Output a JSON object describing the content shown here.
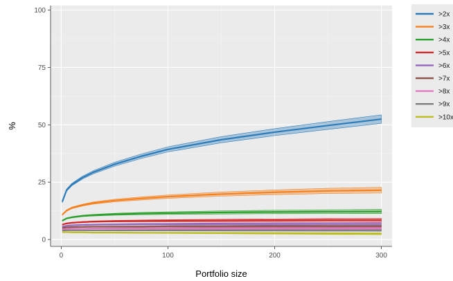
{
  "chart_data": {
    "type": "line",
    "title": "",
    "xlabel": "Portfolio size",
    "ylabel": "%",
    "xlim": [
      -10,
      310
    ],
    "ylim": [
      -3,
      102
    ],
    "xticks": [
      0,
      100,
      200,
      300
    ],
    "yticks": [
      0,
      25,
      50,
      75,
      100
    ],
    "grid": true,
    "legend_position": "right",
    "x": [
      1,
      5,
      10,
      20,
      30,
      50,
      75,
      100,
      150,
      200,
      250,
      300
    ],
    "series": [
      {
        "name": ">2x",
        "color": "#2b7bba",
        "values": [
          16.5,
          21.5,
          24.0,
          27.0,
          29.3,
          32.8,
          36.3,
          39.3,
          43.5,
          46.8,
          49.7,
          52.5
        ],
        "band": 1.8
      },
      {
        "name": ">3x",
        "color": "#f5801e",
        "values": [
          10.8,
          12.6,
          13.8,
          15.0,
          15.9,
          17.0,
          17.9,
          18.7,
          19.8,
          20.6,
          21.2,
          21.5
        ],
        "band": 1.2
      },
      {
        "name": ">4x",
        "color": "#2ca02c",
        "values": [
          8.2,
          9.2,
          9.7,
          10.3,
          10.6,
          11.0,
          11.3,
          11.5,
          11.8,
          12.0,
          12.1,
          12.2
        ],
        "band": 0.9
      },
      {
        "name": ">5x",
        "color": "#d62728",
        "values": [
          6.5,
          7.0,
          7.3,
          7.6,
          7.8,
          8.0,
          8.1,
          8.2,
          8.3,
          8.4,
          8.5,
          8.5
        ],
        "band": 0.7
      },
      {
        "name": ">6x",
        "color": "#9467bd",
        "values": [
          5.6,
          6.0,
          6.2,
          6.4,
          6.5,
          6.6,
          6.7,
          6.7,
          6.8,
          6.8,
          6.8,
          6.8
        ],
        "band": 0.6
      },
      {
        "name": ">7x",
        "color": "#8c564b",
        "values": [
          5.0,
          5.3,
          5.4,
          5.5,
          5.6,
          5.6,
          5.6,
          5.7,
          5.7,
          5.7,
          5.7,
          5.7
        ],
        "band": 0.5
      },
      {
        "name": ">8x",
        "color": "#e377c2",
        "values": [
          4.4,
          4.6,
          4.7,
          4.7,
          4.8,
          4.8,
          4.8,
          4.8,
          4.8,
          4.8,
          4.8,
          4.8
        ],
        "band": 0.5
      },
      {
        "name": ">9x",
        "color": "#7f7f7f",
        "values": [
          3.9,
          4.0,
          4.0,
          4.0,
          4.0,
          4.0,
          4.0,
          4.0,
          4.0,
          4.0,
          4.0,
          4.0
        ],
        "band": 0.4
      },
      {
        "name": ">10x",
        "color": "#bcbd22",
        "values": [
          3.2,
          3.2,
          3.1,
          3.1,
          3.0,
          3.0,
          2.9,
          2.9,
          2.8,
          2.7,
          2.6,
          2.5
        ],
        "band": 0.4
      }
    ]
  }
}
